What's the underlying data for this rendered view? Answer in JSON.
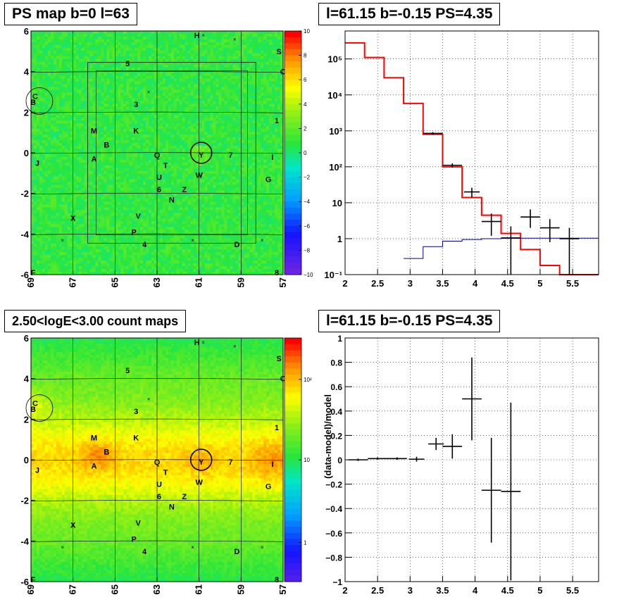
{
  "chart_data": [
    {
      "type": "heatmap",
      "title": "PS map b=0 l=63",
      "x_ticks": [
        "69",
        "67",
        "65",
        "63",
        "61",
        "59",
        "57"
      ],
      "y_ticks": [
        "6",
        "4",
        "2",
        "0",
        "-2",
        "-4",
        "-6"
      ],
      "xlim": [
        69,
        57
      ],
      "ylim": [
        -6,
        6
      ],
      "colorbar_ticks": [
        "10",
        "8",
        "6",
        "4",
        "2",
        "0",
        "−2",
        "−4",
        "−6",
        "−8",
        "−10"
      ],
      "colorbar_range": [
        -10,
        10
      ],
      "grid": true,
      "source_labels": [
        {
          "text": "H",
          "l": 61.1,
          "b": 5.8
        },
        {
          "text": "S",
          "l": 57.2,
          "b": 5.0
        },
        {
          "text": "O",
          "l": 57.0,
          "b": 4.0
        },
        {
          "text": "5",
          "l": 64.4,
          "b": 4.4
        },
        {
          "text": "C",
          "l": 68.8,
          "b": 2.8
        },
        {
          "text": "B",
          "l": 68.9,
          "b": 2.5
        },
        {
          "text": "3",
          "l": 64.0,
          "b": 2.4
        },
        {
          "text": "1",
          "l": 57.3,
          "b": 1.6
        },
        {
          "text": "M",
          "l": 66.0,
          "b": 1.1
        },
        {
          "text": "K",
          "l": 64.0,
          "b": 1.1
        },
        {
          "text": "B",
          "l": 65.4,
          "b": 0.4
        },
        {
          "text": "A",
          "l": 66.0,
          "b": -0.3
        },
        {
          "text": "Q",
          "l": 63.0,
          "b": -0.1
        },
        {
          "text": "Y",
          "l": 60.9,
          "b": -0.1
        },
        {
          "text": "7",
          "l": 59.5,
          "b": -0.1
        },
        {
          "text": "I",
          "l": 57.5,
          "b": -0.2
        },
        {
          "text": "J",
          "l": 68.7,
          "b": -0.5
        },
        {
          "text": "T",
          "l": 62.6,
          "b": -0.6
        },
        {
          "text": "W",
          "l": 61.0,
          "b": -1.1
        },
        {
          "text": "U",
          "l": 62.9,
          "b": -1.2
        },
        {
          "text": "G",
          "l": 57.7,
          "b": -1.3
        },
        {
          "text": "6",
          "l": 62.9,
          "b": -1.8
        },
        {
          "text": "Z",
          "l": 61.7,
          "b": -1.8
        },
        {
          "text": "N",
          "l": 62.3,
          "b": -2.3
        },
        {
          "text": "V",
          "l": 63.9,
          "b": -3.1
        },
        {
          "text": "X",
          "l": 67.0,
          "b": -3.2
        },
        {
          "text": "P",
          "l": 64.1,
          "b": -3.9
        },
        {
          "text": "4",
          "l": 63.6,
          "b": -4.5
        },
        {
          "text": "D",
          "l": 59.2,
          "b": -4.5
        },
        {
          "text": "F",
          "l": 68.9,
          "b": -5.9
        },
        {
          "text": "8",
          "l": 57.3,
          "b": -5.9
        }
      ]
    },
    {
      "type": "line",
      "title": "l=61.15 b=-0.15 PS=4.35",
      "xlim": [
        2.0,
        5.9
      ],
      "ylim": [
        0.1,
        600000
      ],
      "y_scale": "log",
      "x_ticks": [
        "2",
        "2.5",
        "3",
        "3.5",
        "4",
        "4.5",
        "5",
        "5.5"
      ],
      "y_ticks": [
        "10⁻¹",
        "1",
        "10",
        "10²",
        "10³",
        "10⁴",
        "10⁵"
      ],
      "grid": true,
      "bin_edges": [
        2.0,
        2.3,
        2.6,
        2.9,
        3.2,
        3.5,
        3.8,
        4.1,
        4.4,
        4.7,
        5.0,
        5.3,
        5.6,
        5.9
      ],
      "series": [
        {
          "color": "#ff0000",
          "values": [
            280000,
            110000,
            30000,
            5800,
            800,
            100,
            14,
            4.5,
            1.4,
            0.5,
            0.18,
            0.1,
            0.1
          ]
        },
        {
          "color": "#00008b",
          "values": [
            null,
            null,
            null,
            0.28,
            0.6,
            0.85,
            0.95,
            1.0,
            1.02,
            1.03,
            1.03,
            1.03,
            1.03
          ]
        }
      ],
      "data_points": [
        {
          "x": 3.35,
          "y": 850,
          "xerr": 0.15,
          "ylo": 780,
          "yhi": 920
        },
        {
          "x": 3.65,
          "y": 110,
          "xerr": 0.15,
          "ylo": 95,
          "yhi": 125
        },
        {
          "x": 3.95,
          "y": 20,
          "xerr": 0.12,
          "ylo": 14,
          "yhi": 26
        },
        {
          "x": 4.25,
          "y": 3,
          "xerr": 0.15,
          "ylo": 1.2,
          "yhi": 5
        },
        {
          "x": 4.55,
          "y": 1.05,
          "xerr": 0.15,
          "ylo": 0.1,
          "yhi": 2.2
        },
        {
          "x": 4.85,
          "y": 4,
          "xerr": 0.15,
          "ylo": 2,
          "yhi": 6.5
        },
        {
          "x": 5.15,
          "y": 2,
          "xerr": 0.15,
          "ylo": 0.8,
          "yhi": 3.5
        },
        {
          "x": 5.45,
          "y": 1,
          "xerr": 0.15,
          "ylo": 0.1,
          "yhi": 2
        }
      ]
    },
    {
      "type": "heatmap",
      "title": "2.50<logE<3.00 count maps",
      "x_ticks": [
        "69",
        "67",
        "65",
        "63",
        "61",
        "59",
        "57"
      ],
      "y_ticks": [
        "6",
        "4",
        "2",
        "0",
        "-2",
        "-4",
        "-6"
      ],
      "xlim": [
        69,
        57
      ],
      "ylim": [
        -6,
        6
      ],
      "colorbar_scale": "log",
      "colorbar_ticks": [
        "10²",
        "10",
        "1"
      ],
      "grid": true
    },
    {
      "type": "scatter",
      "title": "l=61.15 b=-0.15 PS=4.35",
      "ylabel": "(data-model)/model",
      "xlim": [
        2.0,
        5.9
      ],
      "ylim": [
        -1,
        1
      ],
      "x_ticks": [
        "2",
        "2.5",
        "3",
        "3.5",
        "4",
        "4.5",
        "5",
        "5.5"
      ],
      "y_ticks": [
        "1",
        "0.8",
        "0.6",
        "0.4",
        "0.2",
        "0",
        "−0.2",
        "−0.4",
        "−0.6",
        "−0.8",
        "−1"
      ],
      "grid": true,
      "points": [
        {
          "x": 2.2,
          "y": 0.0,
          "xerr": 0.15,
          "yerr": 0.01
        },
        {
          "x": 2.5,
          "y": 0.01,
          "xerr": 0.15,
          "yerr": 0.01
        },
        {
          "x": 2.8,
          "y": 0.01,
          "xerr": 0.15,
          "yerr": 0.01
        },
        {
          "x": 3.1,
          "y": 0.005,
          "xerr": 0.12,
          "yerr": 0.02
        },
        {
          "x": 3.4,
          "y": 0.13,
          "xerr": 0.12,
          "yerr": 0.05
        },
        {
          "x": 3.65,
          "y": 0.11,
          "xerr": 0.15,
          "yerr": 0.1
        },
        {
          "x": 3.95,
          "y": 0.5,
          "xerr": 0.15,
          "yerr": 0.34
        },
        {
          "x": 4.25,
          "y": -0.25,
          "xerr": 0.15,
          "yerr": 0.43
        },
        {
          "x": 4.55,
          "y": -0.26,
          "xerr": 0.15,
          "yerr": 0.73
        }
      ]
    }
  ]
}
